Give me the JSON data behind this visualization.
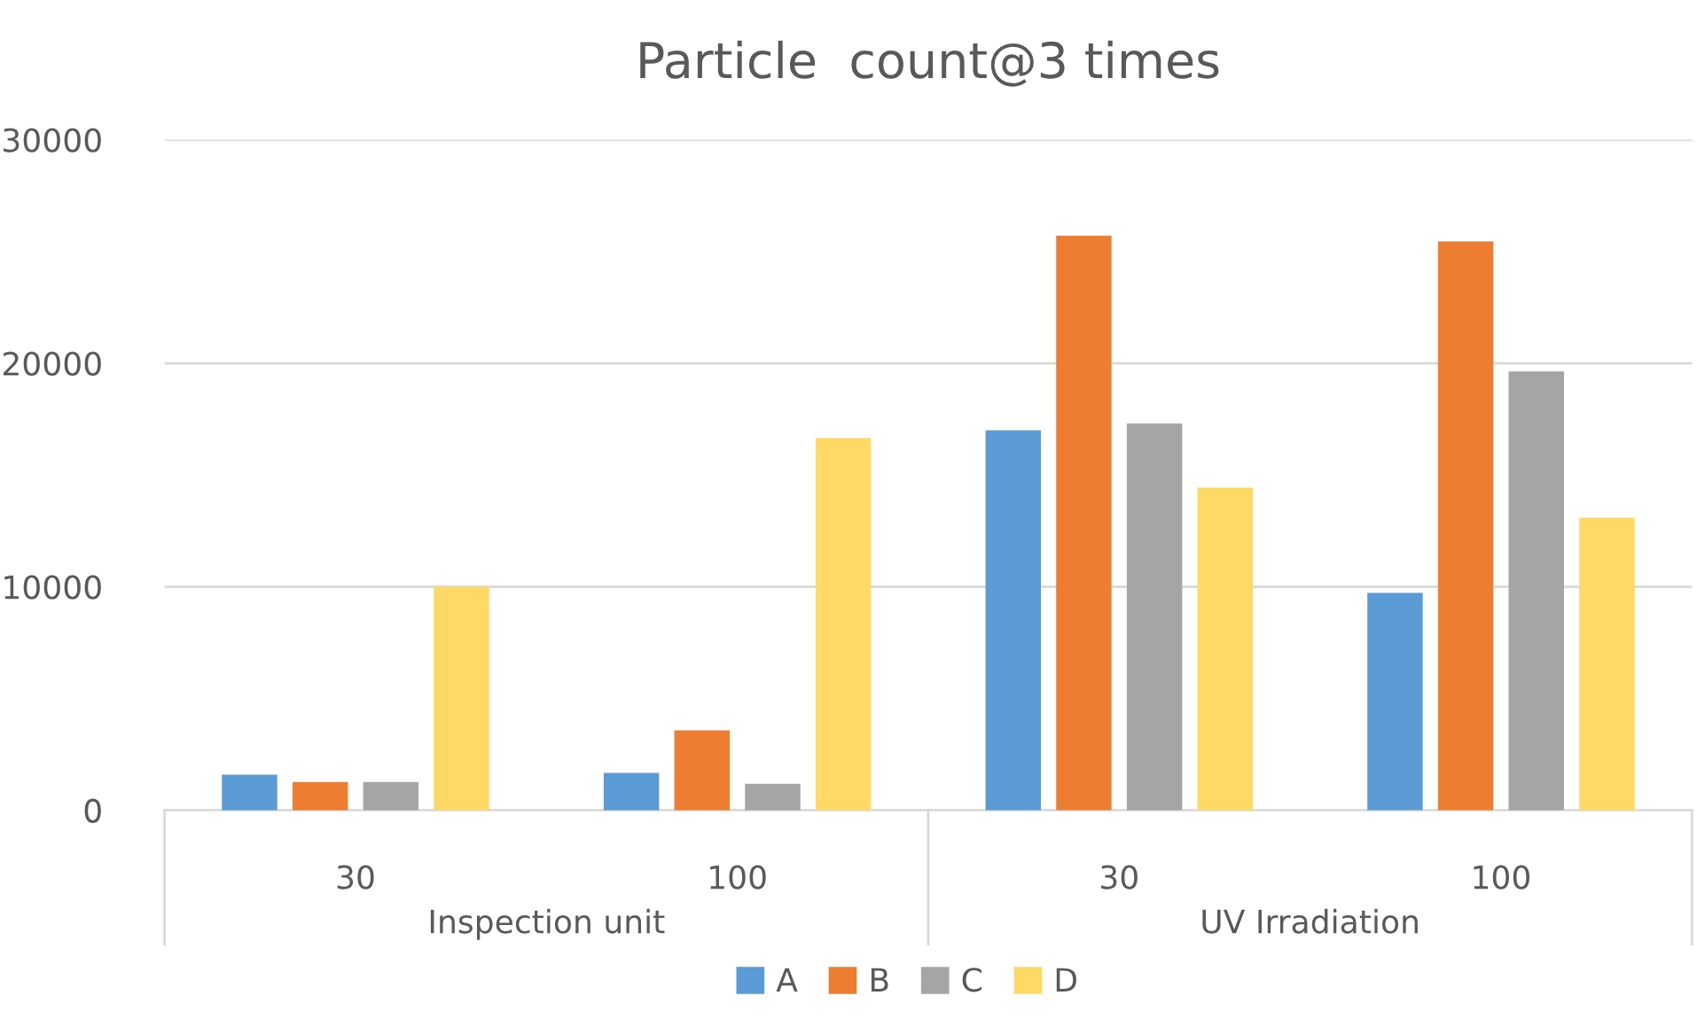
{
  "chart_data": {
    "type": "bar",
    "title": "Particle  count@3 times",
    "categories": [
      "30",
      "100",
      "30",
      "100"
    ],
    "series": [
      {
        "name": "A",
        "color": "#5b9bd5",
        "values": [
          1590,
          1670,
          17000,
          9730
        ]
      },
      {
        "name": "B",
        "color": "#ed7d31",
        "values": [
          1270,
          3580,
          25700,
          25450
        ]
      },
      {
        "name": "C",
        "color": "#a5a5a5",
        "values": [
          1270,
          1190,
          17300,
          19630
        ]
      },
      {
        "name": "D",
        "color": "#ffd966",
        "values": [
          10000,
          16650,
          14440,
          13090
        ]
      }
    ],
    "annotations": [
      "Inspection unit",
      "UV Irradiation"
    ],
    "ylim": [
      0,
      30000
    ],
    "yticks": [
      0,
      10000,
      20000,
      30000
    ],
    "grid": "y",
    "legend": "bottom"
  }
}
